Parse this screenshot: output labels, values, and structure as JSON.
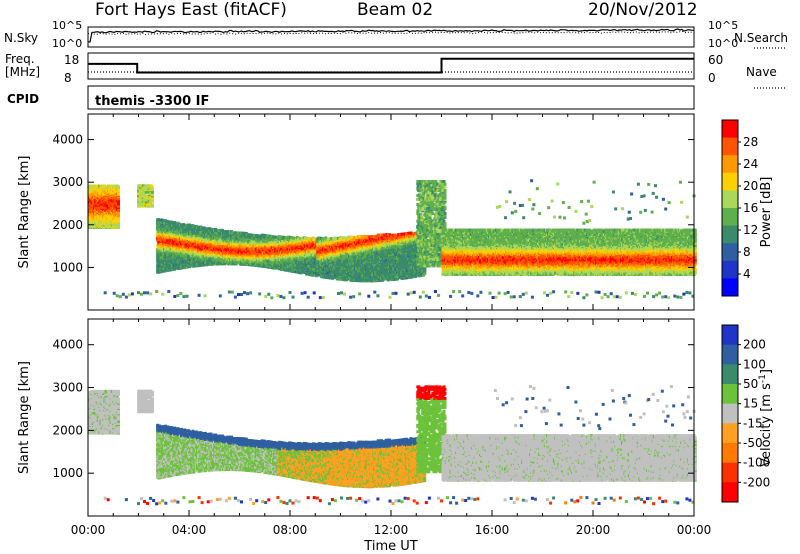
{
  "header": {
    "station": "Fort Hays East (fitACF)",
    "beam": "Beam 02",
    "date": "20/Nov/2012"
  },
  "noise_panel": {
    "left_label": "N.Sky",
    "right_label": "N.Search",
    "tick_top": "10^5",
    "tick_bottom": "10^0"
  },
  "freq_panel": {
    "left_label_line1": "Freq.",
    "left_label_line2": "[MHz]",
    "right_label": "Nave",
    "left_ticks": [
      "18",
      "8"
    ],
    "right_ticks": [
      "60",
      "0"
    ],
    "freq_profile": [
      {
        "t": 0.0,
        "f": 13.8
      },
      {
        "t": 1.95,
        "f": 13.8
      },
      {
        "t": 1.95,
        "f": 10.5
      },
      {
        "t": 14.0,
        "f": 10.5
      },
      {
        "t": 14.0,
        "f": 15.8
      },
      {
        "t": 24.0,
        "f": 15.8
      }
    ]
  },
  "cpid": {
    "label": "CPID",
    "value": "themis -3300 IF"
  },
  "chart_data": [
    {
      "type": "heatmap",
      "name": "power",
      "ylabel": "Slant Range [km]",
      "ylim": [
        0,
        4600
      ],
      "yticks": [
        1000,
        2000,
        3000,
        4000
      ],
      "xlim": [
        0,
        24
      ],
      "colorbar_label": "Power [dB]",
      "colorbar_ticks": [
        "28",
        "24",
        "20",
        "16",
        "12",
        "8",
        "4"
      ],
      "colorbar_colors": [
        "#ff0000",
        "#ff5500",
        "#ff9900",
        "#ffd000",
        "#aad85a",
        "#5fb04c",
        "#3a8a6c",
        "#2e5fa0",
        "#1e35c8",
        "#0000ff"
      ],
      "features": [
        {
          "desc": "early echo",
          "t0": 0.0,
          "t1": 1.2,
          "r0": 1900,
          "r1": 2900
        },
        {
          "desc": "main band",
          "t0": 3.0,
          "t1": 13.2,
          "r0": 700,
          "r1": 2100
        },
        {
          "desc": "late band",
          "t0": 14.0,
          "t1": 24.0,
          "r0": 800,
          "r1": 1800
        }
      ]
    },
    {
      "type": "heatmap",
      "name": "velocity",
      "ylabel": "Slant Range [km]",
      "ylim": [
        0,
        4600
      ],
      "yticks": [
        1000,
        2000,
        3000,
        4000
      ],
      "xlim": [
        0,
        24
      ],
      "colorbar_label": "Velocity [m s^-1]",
      "colorbar_ticks": [
        "200",
        "100",
        "50",
        "15",
        "-15",
        "-50",
        "-100",
        "-200"
      ],
      "colorbar_colors": [
        "#1e35c8",
        "#2e5fa0",
        "#3a8a6c",
        "#6cc23a",
        "#c0c0c0",
        "#ffa020",
        "#ff7a00",
        "#ff3000",
        "#ff0000"
      ],
      "xticks": [
        "00:00",
        "04:00",
        "08:00",
        "12:00",
        "16:00",
        "20:00",
        "00:00"
      ],
      "xlabel": "Time UT"
    }
  ]
}
